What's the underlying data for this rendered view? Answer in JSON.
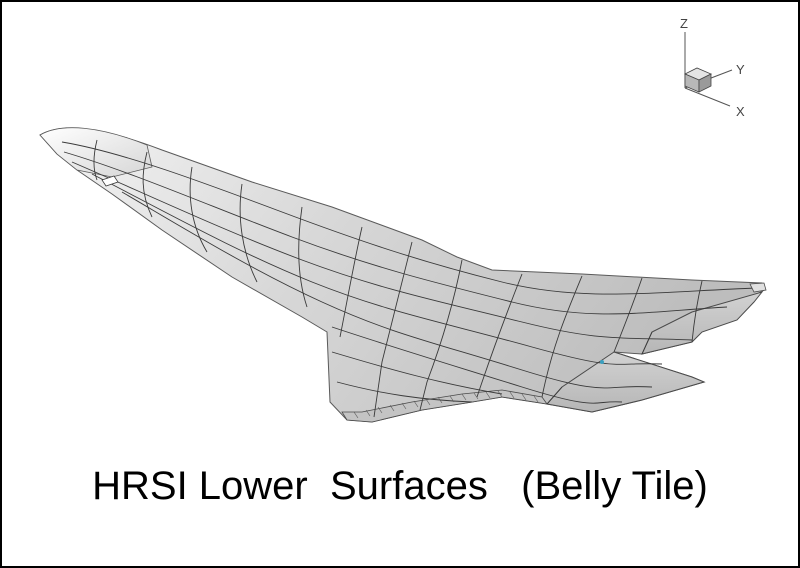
{
  "caption": "HRSI Lower  Surfaces   (Belly Tile)",
  "axis_triad": {
    "z_label": "Z",
    "y_label": "Y",
    "x_label": "X"
  },
  "colors": {
    "surface_light": "#f2f2f2",
    "surface_mid": "#d0d0d0",
    "surface_dark": "#b4b4b4",
    "mesh_line": "#3a3a3a",
    "marker": "#3aa0c0"
  }
}
